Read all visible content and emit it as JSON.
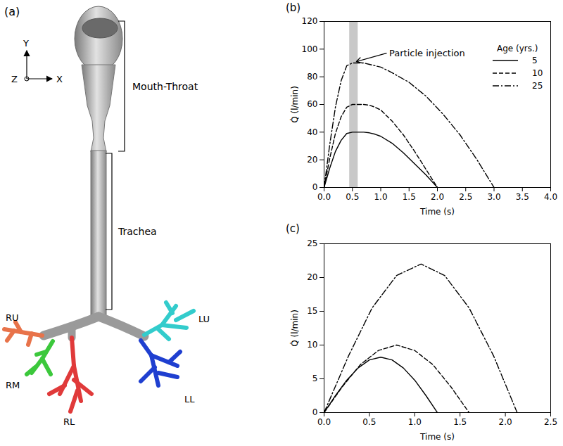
{
  "diagram": {
    "label": "(a)",
    "axes": [
      "Y",
      "X",
      "Z"
    ],
    "regions": [
      {
        "label": "Mouth-Throat"
      },
      {
        "label": "Trachea"
      }
    ],
    "lobes": [
      {
        "label": "RU",
        "color": "#e8734a"
      },
      {
        "label": "RM",
        "color": "#3cc83c"
      },
      {
        "label": "RL",
        "color": "#e03a3a"
      },
      {
        "label": "LU",
        "color": "#33cccc"
      },
      {
        "label": "LL",
        "color": "#1f3fd0"
      }
    ]
  },
  "chart_data": [
    {
      "type": "line",
      "title": "(b)",
      "x_label": "Time (s)",
      "y_label": "Q̇ (l/min)",
      "xlim": [
        0,
        4
      ],
      "xticks": [
        {
          "value": 0,
          "label": "0.0"
        },
        {
          "value": 0.5,
          "label": "0.5"
        },
        {
          "value": 1,
          "label": "1.0"
        },
        {
          "value": 1.5,
          "label": "1.5"
        },
        {
          "value": 2,
          "label": "2.0"
        },
        {
          "value": 2.5,
          "label": "2.5"
        },
        {
          "value": 3,
          "label": "3.0"
        },
        {
          "value": 3.5,
          "label": "3.5"
        },
        {
          "value": 4,
          "label": "4.0"
        }
      ],
      "ylim": [
        0,
        120
      ],
      "yticks": [
        0,
        20,
        40,
        60,
        80,
        100,
        120
      ],
      "legend": "top-right",
      "legend_title": "Age (yrs.)",
      "series": [
        {
          "name": "5",
          "color": "#000000",
          "line_style": "solid",
          "x": [
            0,
            0.1,
            0.2,
            0.3,
            0.4,
            0.5,
            0.6,
            0.7,
            0.8,
            0.9,
            1.0,
            1.2,
            1.4,
            1.6,
            1.8,
            2.0
          ],
          "values": [
            0,
            14,
            26,
            34,
            39,
            40,
            40,
            40,
            39.5,
            38.5,
            37,
            32,
            25,
            17,
            9,
            0
          ]
        },
        {
          "name": "10",
          "color": "#000000",
          "line_style": "dashed",
          "x": [
            0,
            0.1,
            0.2,
            0.3,
            0.4,
            0.5,
            0.6,
            0.7,
            0.8,
            0.9,
            1.0,
            1.2,
            1.4,
            1.6,
            1.8,
            2.0
          ],
          "values": [
            0,
            21,
            39,
            51,
            58,
            60,
            60,
            60,
            59.5,
            58,
            56,
            48,
            38,
            26,
            13,
            0
          ]
        },
        {
          "name": "25",
          "color": "#000000",
          "line_style": "dashdot",
          "x": [
            0,
            0.1,
            0.2,
            0.3,
            0.4,
            0.5,
            0.6,
            0.7,
            0.8,
            1.0,
            1.2,
            1.5,
            1.8,
            2.1,
            2.4,
            2.7,
            3.0
          ],
          "values": [
            0,
            31,
            58,
            77,
            88,
            90,
            90,
            90,
            89,
            87,
            83,
            76,
            66,
            53,
            38,
            20,
            0
          ]
        }
      ],
      "annotations": [
        {
          "text": "Particle injection",
          "x": 1.1,
          "y": 97,
          "arrow_to": [
            0.57,
            91
          ],
          "band": [
            0.45,
            0.6
          ]
        }
      ]
    },
    {
      "type": "line",
      "title": "(c)",
      "x_label": "Time (s)",
      "y_label": "Q̇ (l/min)",
      "xlim": [
        0,
        2.5
      ],
      "xticks": [
        {
          "value": 0,
          "label": "0.0"
        },
        {
          "value": 0.5,
          "label": "0.5"
        },
        {
          "value": 1,
          "label": "1.0"
        },
        {
          "value": 1.5,
          "label": "1.5"
        },
        {
          "value": 2,
          "label": "2.0"
        },
        {
          "value": 2.5,
          "label": "2.5"
        }
      ],
      "ylim": [
        0,
        25
      ],
      "yticks": [
        0,
        5,
        10,
        15,
        20,
        25
      ],
      "series": [
        {
          "name": "5",
          "color": "#000000",
          "line_style": "solid",
          "x": [
            0,
            0.125,
            0.25,
            0.375,
            0.5,
            0.625,
            0.75,
            0.875,
            1.0,
            1.125,
            1.25
          ],
          "values": [
            0,
            2.5,
            4.8,
            6.6,
            7.8,
            8.2,
            7.8,
            6.6,
            4.8,
            2.5,
            0
          ]
        },
        {
          "name": "10",
          "color": "#000000",
          "line_style": "dashed",
          "x": [
            0,
            0.2,
            0.4,
            0.6,
            0.8,
            1.0,
            1.2,
            1.4,
            1.6
          ],
          "values": [
            0,
            3.8,
            7.1,
            9.2,
            10,
            9.2,
            7.1,
            3.8,
            0
          ]
        },
        {
          "name": "25",
          "color": "#000000",
          "line_style": "dashdot",
          "x": [
            0,
            0.27,
            0.53,
            0.8,
            1.07,
            1.33,
            1.6,
            1.87,
            2.13
          ],
          "values": [
            0,
            8.4,
            15.5,
            20.3,
            22,
            20.3,
            15.5,
            8.4,
            0
          ]
        }
      ]
    }
  ]
}
